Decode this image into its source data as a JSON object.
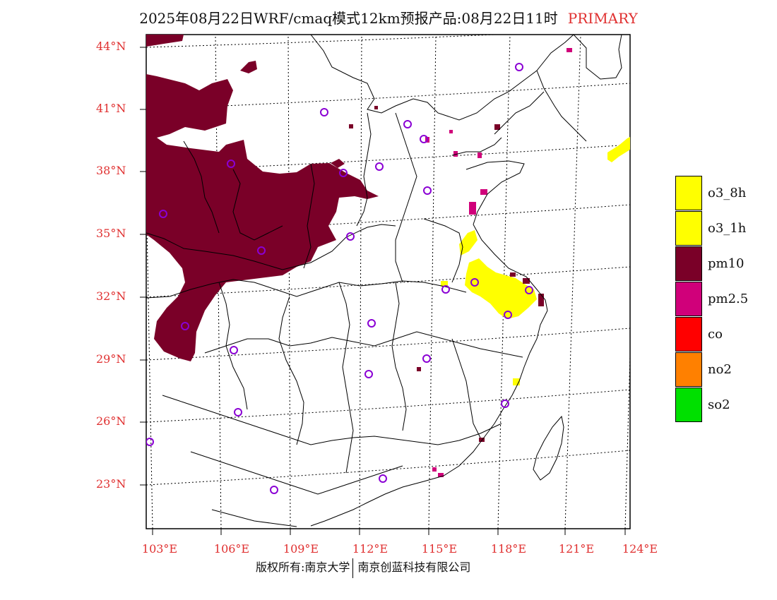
{
  "header": {
    "title": "2025年08月22日WRF/cmaq模式12km预报产品:08月22日11时",
    "highlight": "PRIMARY"
  },
  "axes": {
    "lat_labels": [
      "44°N",
      "41°N",
      "38°N",
      "35°N",
      "32°N",
      "29°N",
      "26°N",
      "23°N"
    ],
    "lon_labels": [
      "103°E",
      "106°E",
      "109°E",
      "112°E",
      "115°E",
      "118°E",
      "121°E",
      "124°E"
    ]
  },
  "legend": [
    {
      "label": "o3_8h",
      "color": "#ffff00"
    },
    {
      "label": "o3_1h",
      "color": "#ffff00"
    },
    {
      "label": "pm10",
      "color": "#7a0028"
    },
    {
      "label": "pm2.5",
      "color": "#d0007a"
    },
    {
      "label": "co",
      "color": "#ff0000"
    },
    {
      "label": "no2",
      "color": "#ff8000"
    },
    {
      "label": "so2",
      "color": "#00e000"
    }
  ],
  "footer": {
    "left": "版权所有:南京大学",
    "right": "南京创蓝科技有限公司"
  },
  "colors": {
    "title_highlight": "#e03030",
    "axis_label": "#e03030",
    "station_marker": "#8a00d4",
    "boundary": "#000000"
  }
}
